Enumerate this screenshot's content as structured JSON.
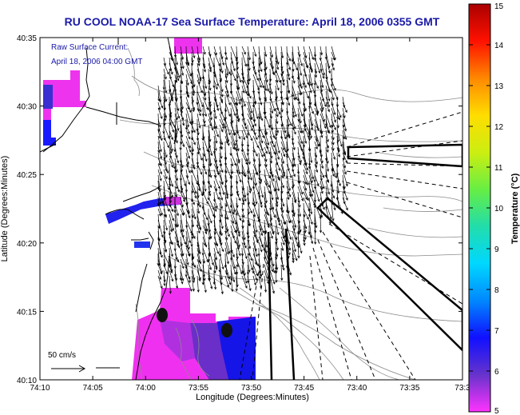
{
  "title": "RU COOL  NOAA-17 Sea Surface Temperature:  April 18, 2006 0355 GMT",
  "annotation": {
    "line1": "Raw Surface Current:",
    "line2": "April 18, 2006 04:00 GMT"
  },
  "scale_label": "50 cm/s",
  "x_axis": {
    "label": "Longitude (Degrees:Minutes)",
    "ticks": [
      "74:10",
      "74:05",
      "74:00",
      "73:55",
      "73:50",
      "73:45",
      "73:40",
      "73:35",
      "73:3"
    ]
  },
  "y_axis": {
    "label": "Latitude (Degrees:Minutes)",
    "ticks": [
      "40:35",
      "40:30",
      "40:25",
      "40:20",
      "40:15",
      "40:10"
    ]
  },
  "colorbar": {
    "label": "Temperature (°C)",
    "ticks": [
      "15",
      "14",
      "13",
      "12",
      "11",
      "10",
      "9",
      "8",
      "7",
      "6",
      "5"
    ],
    "colors": [
      "#ff33ff",
      "#6633cc",
      "#1010ff",
      "#0088ff",
      "#00d8ff",
      "#22ddaa",
      "#66ee44",
      "#ccee11",
      "#ffdd00",
      "#ff8800",
      "#ff1100",
      "#aa0000"
    ]
  },
  "map_colors": {
    "coast": "#000000",
    "contour": "#8a8a8a",
    "arrow": "#000000"
  }
}
